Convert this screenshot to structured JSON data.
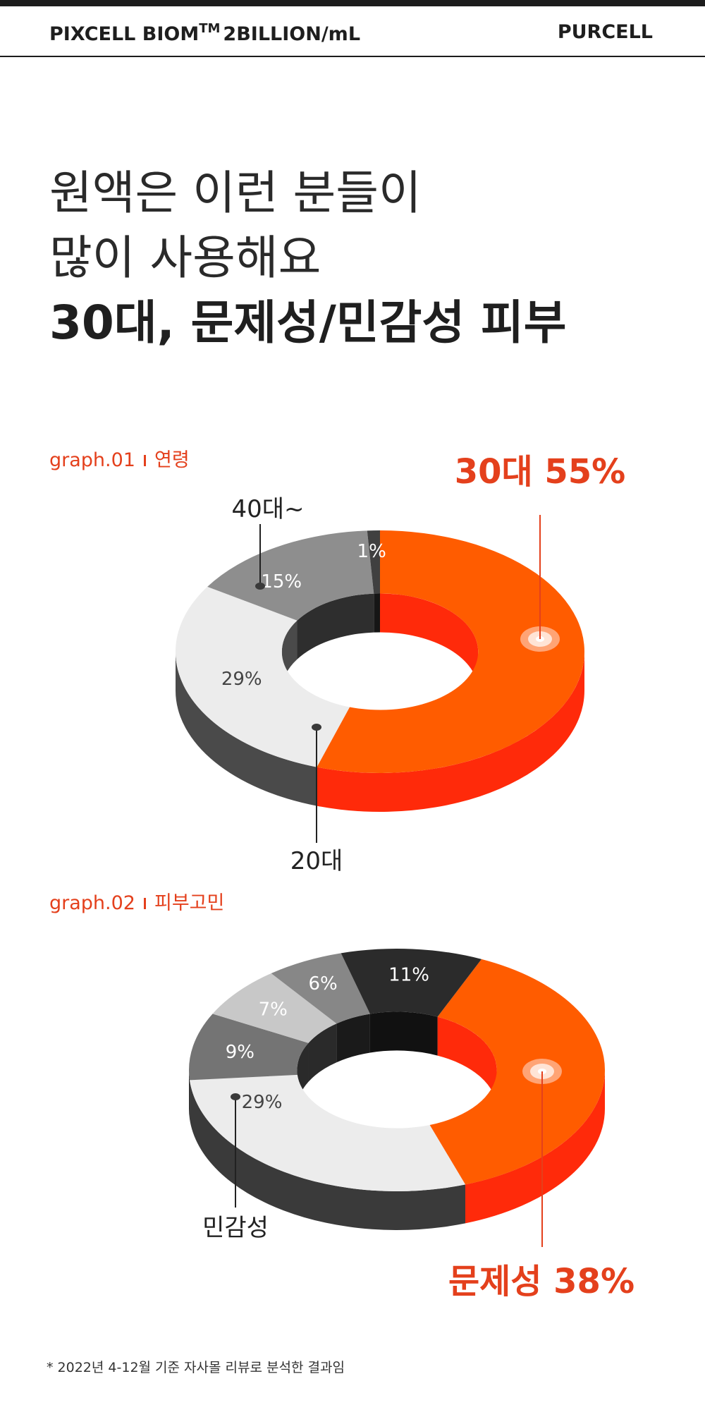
{
  "header": {
    "brand_left_main": "PIXCELL BIOM",
    "brand_left_tm": "TM",
    "brand_left_suffix": "2BILLION/mL",
    "brand_right": "PURCELL"
  },
  "headline": {
    "line1": "원액은 이런 분들이",
    "line2": "많이 사용해요",
    "line3": "30대, 문제성/민감성 피부"
  },
  "graph1": {
    "label_prefix": "graph.01",
    "label_name": "연령"
  },
  "graph2": {
    "label_prefix": "graph.02",
    "label_name": "피부고민"
  },
  "footnote": "* 2022년 4-12월 기준 자사몰 리뷰로 분석한 결과임",
  "colors": {
    "accent": "#ff5c00",
    "accent_side": "#ff2a0a",
    "accent_text": "#e4401c",
    "dark": "#404040",
    "mid_gray": "#8e8e8e",
    "light": "#ececec"
  },
  "chart_data": [
    {
      "type": "pie",
      "variant": "3d-donut",
      "title": "",
      "segments": [
        {
          "label": "30대",
          "value": 55,
          "value_text": "55%",
          "color": "#ff5c00",
          "side_color": "#ff2a0a",
          "callout": "30대 55%"
        },
        {
          "label": "20대",
          "value": 29,
          "value_text": "29%",
          "color": "#ececec",
          "side_color": "#4a4a4a",
          "callout": "20대"
        },
        {
          "label": "40대~",
          "value": 15,
          "value_text": "15%",
          "color": "#8e8e8e",
          "side_color": "#2e2e2e",
          "callout": "40대~"
        },
        {
          "label": "",
          "value": 1,
          "value_text": "1%",
          "color": "#404040",
          "side_color": "#161616",
          "callout": ""
        }
      ]
    },
    {
      "type": "pie",
      "variant": "3d-donut",
      "title": "",
      "segments": [
        {
          "label": "문제성",
          "value": 38,
          "value_text": "38%",
          "color": "#ff5c00",
          "side_color": "#ff2a0a",
          "callout": "문제성 38%"
        },
        {
          "label": "민감성",
          "value": 29,
          "value_text": "29%",
          "color": "#ececec",
          "side_color": "#3a3a3a",
          "callout": "민감성"
        },
        {
          "label": "",
          "value": 9,
          "value_text": "9%",
          "color": "#747474",
          "side_color": "#2a2a2a",
          "callout": ""
        },
        {
          "label": "",
          "value": 7,
          "value_text": "7%",
          "color": "#c8c8c8",
          "side_color": "#2a2a2a",
          "callout": ""
        },
        {
          "label": "",
          "value": 6,
          "value_text": "6%",
          "color": "#878787",
          "side_color": "#1a1a1a",
          "callout": ""
        },
        {
          "label": "",
          "value": 11,
          "value_text": "11%",
          "color": "#2b2b2b",
          "side_color": "#111111",
          "callout": ""
        }
      ]
    }
  ]
}
